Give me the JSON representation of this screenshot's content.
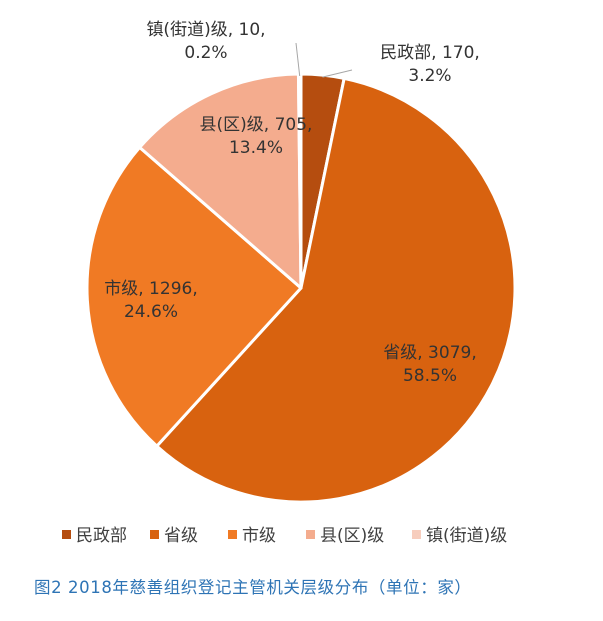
{
  "chart_data": {
    "type": "pie",
    "categories": [
      "民政部",
      "省级",
      "市级",
      "县(区)级",
      "镇(街道)级"
    ],
    "values": [
      170,
      3079,
      1296,
      705,
      10
    ],
    "percent_labels": [
      "3.2%",
      "58.5%",
      "24.6%",
      "13.4%",
      "0.2%"
    ],
    "value_labels": [
      "170,",
      "3079,",
      "1296,",
      "705,",
      "10,"
    ],
    "colors": [
      "#b54d0f",
      "#d8620f",
      "#f07a24",
      "#f4ac8e",
      "#f7cdbd"
    ],
    "legend": {
      "placement": "bottom",
      "entries": [
        "民政部",
        "省级",
        "市级",
        "县(区)级",
        "镇(街道)级"
      ]
    },
    "caption": "图2  2018年慈善组织登记主管机关层级分布（单位：家）"
  }
}
